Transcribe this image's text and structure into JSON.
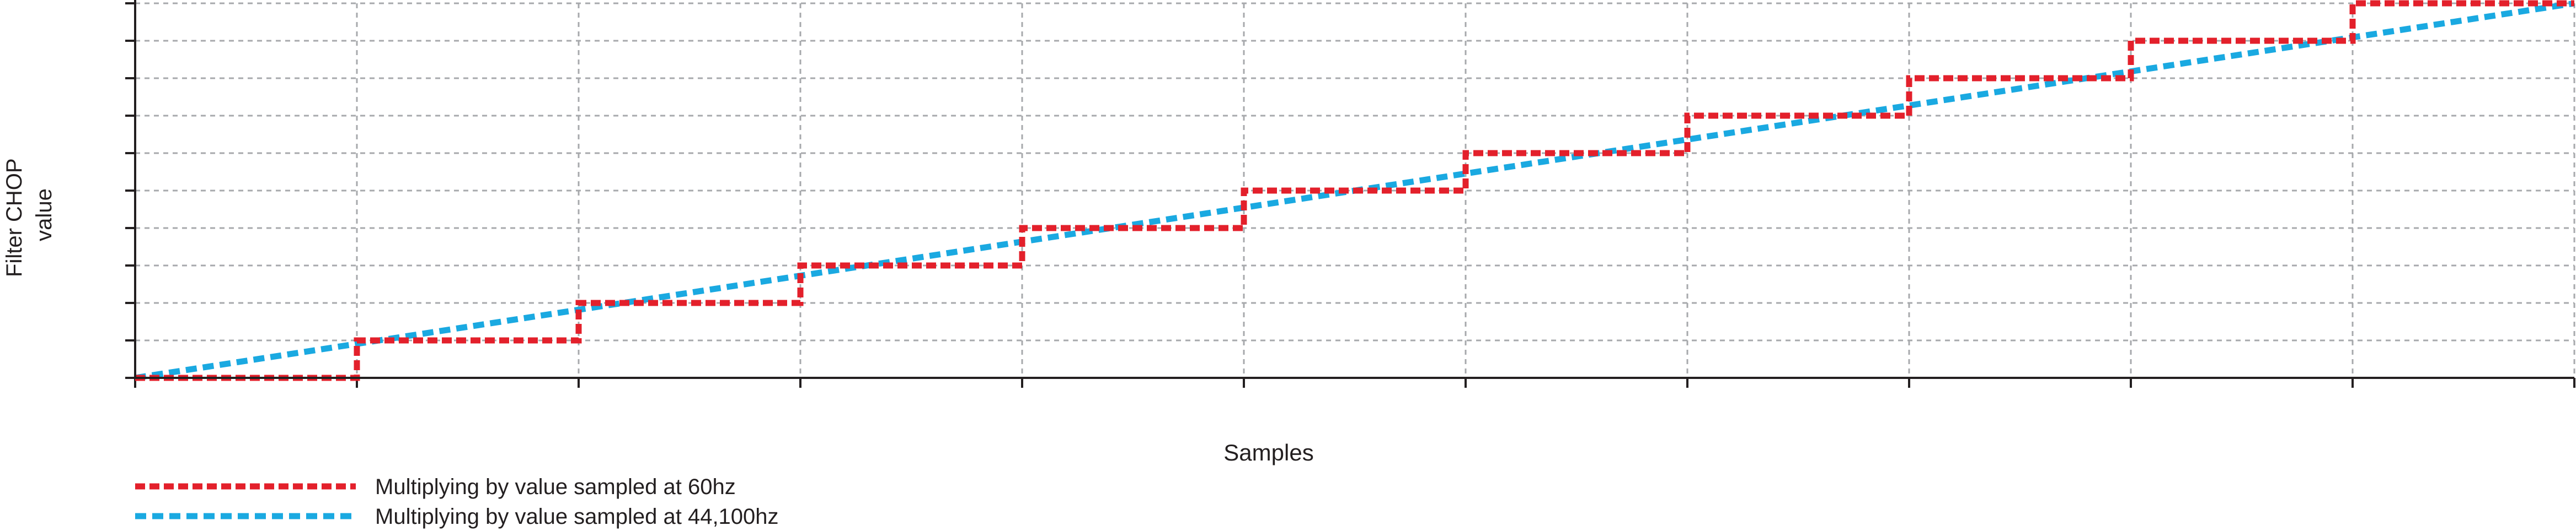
{
  "chart_data": {
    "type": "line",
    "title": "",
    "xlabel": "Samples",
    "ylabel": "Filter CHOP value",
    "xlim": [
      0,
      11
    ],
    "ylim": [
      0,
      10
    ],
    "grid": true,
    "legend_position": "bottom-left",
    "x_ticks": [
      0,
      1,
      2,
      3,
      4,
      5,
      6,
      7,
      8,
      9,
      10,
      11
    ],
    "y_ticks": [
      0,
      1,
      2,
      3,
      4,
      5,
      6,
      7,
      8,
      9,
      10
    ],
    "series": [
      {
        "name": "Multiplying by value sampled at 60hz",
        "color": "#e3202b",
        "style": "step",
        "x": [
          0,
          1,
          1,
          2,
          2,
          3,
          3,
          4,
          4,
          5,
          5,
          6,
          6,
          7,
          7,
          8,
          8,
          9,
          9,
          10,
          10,
          11
        ],
        "values": [
          0,
          0,
          1,
          1,
          2,
          2,
          3,
          3,
          4,
          4,
          5,
          5,
          6,
          6,
          7,
          7,
          8,
          8,
          9,
          9,
          10,
          10
        ]
      },
      {
        "name": "Multiplying by value sampled at 44,100hz",
        "color": "#1aa9e1",
        "style": "line",
        "x": [
          0,
          11
        ],
        "values": [
          0,
          10
        ]
      }
    ]
  }
}
